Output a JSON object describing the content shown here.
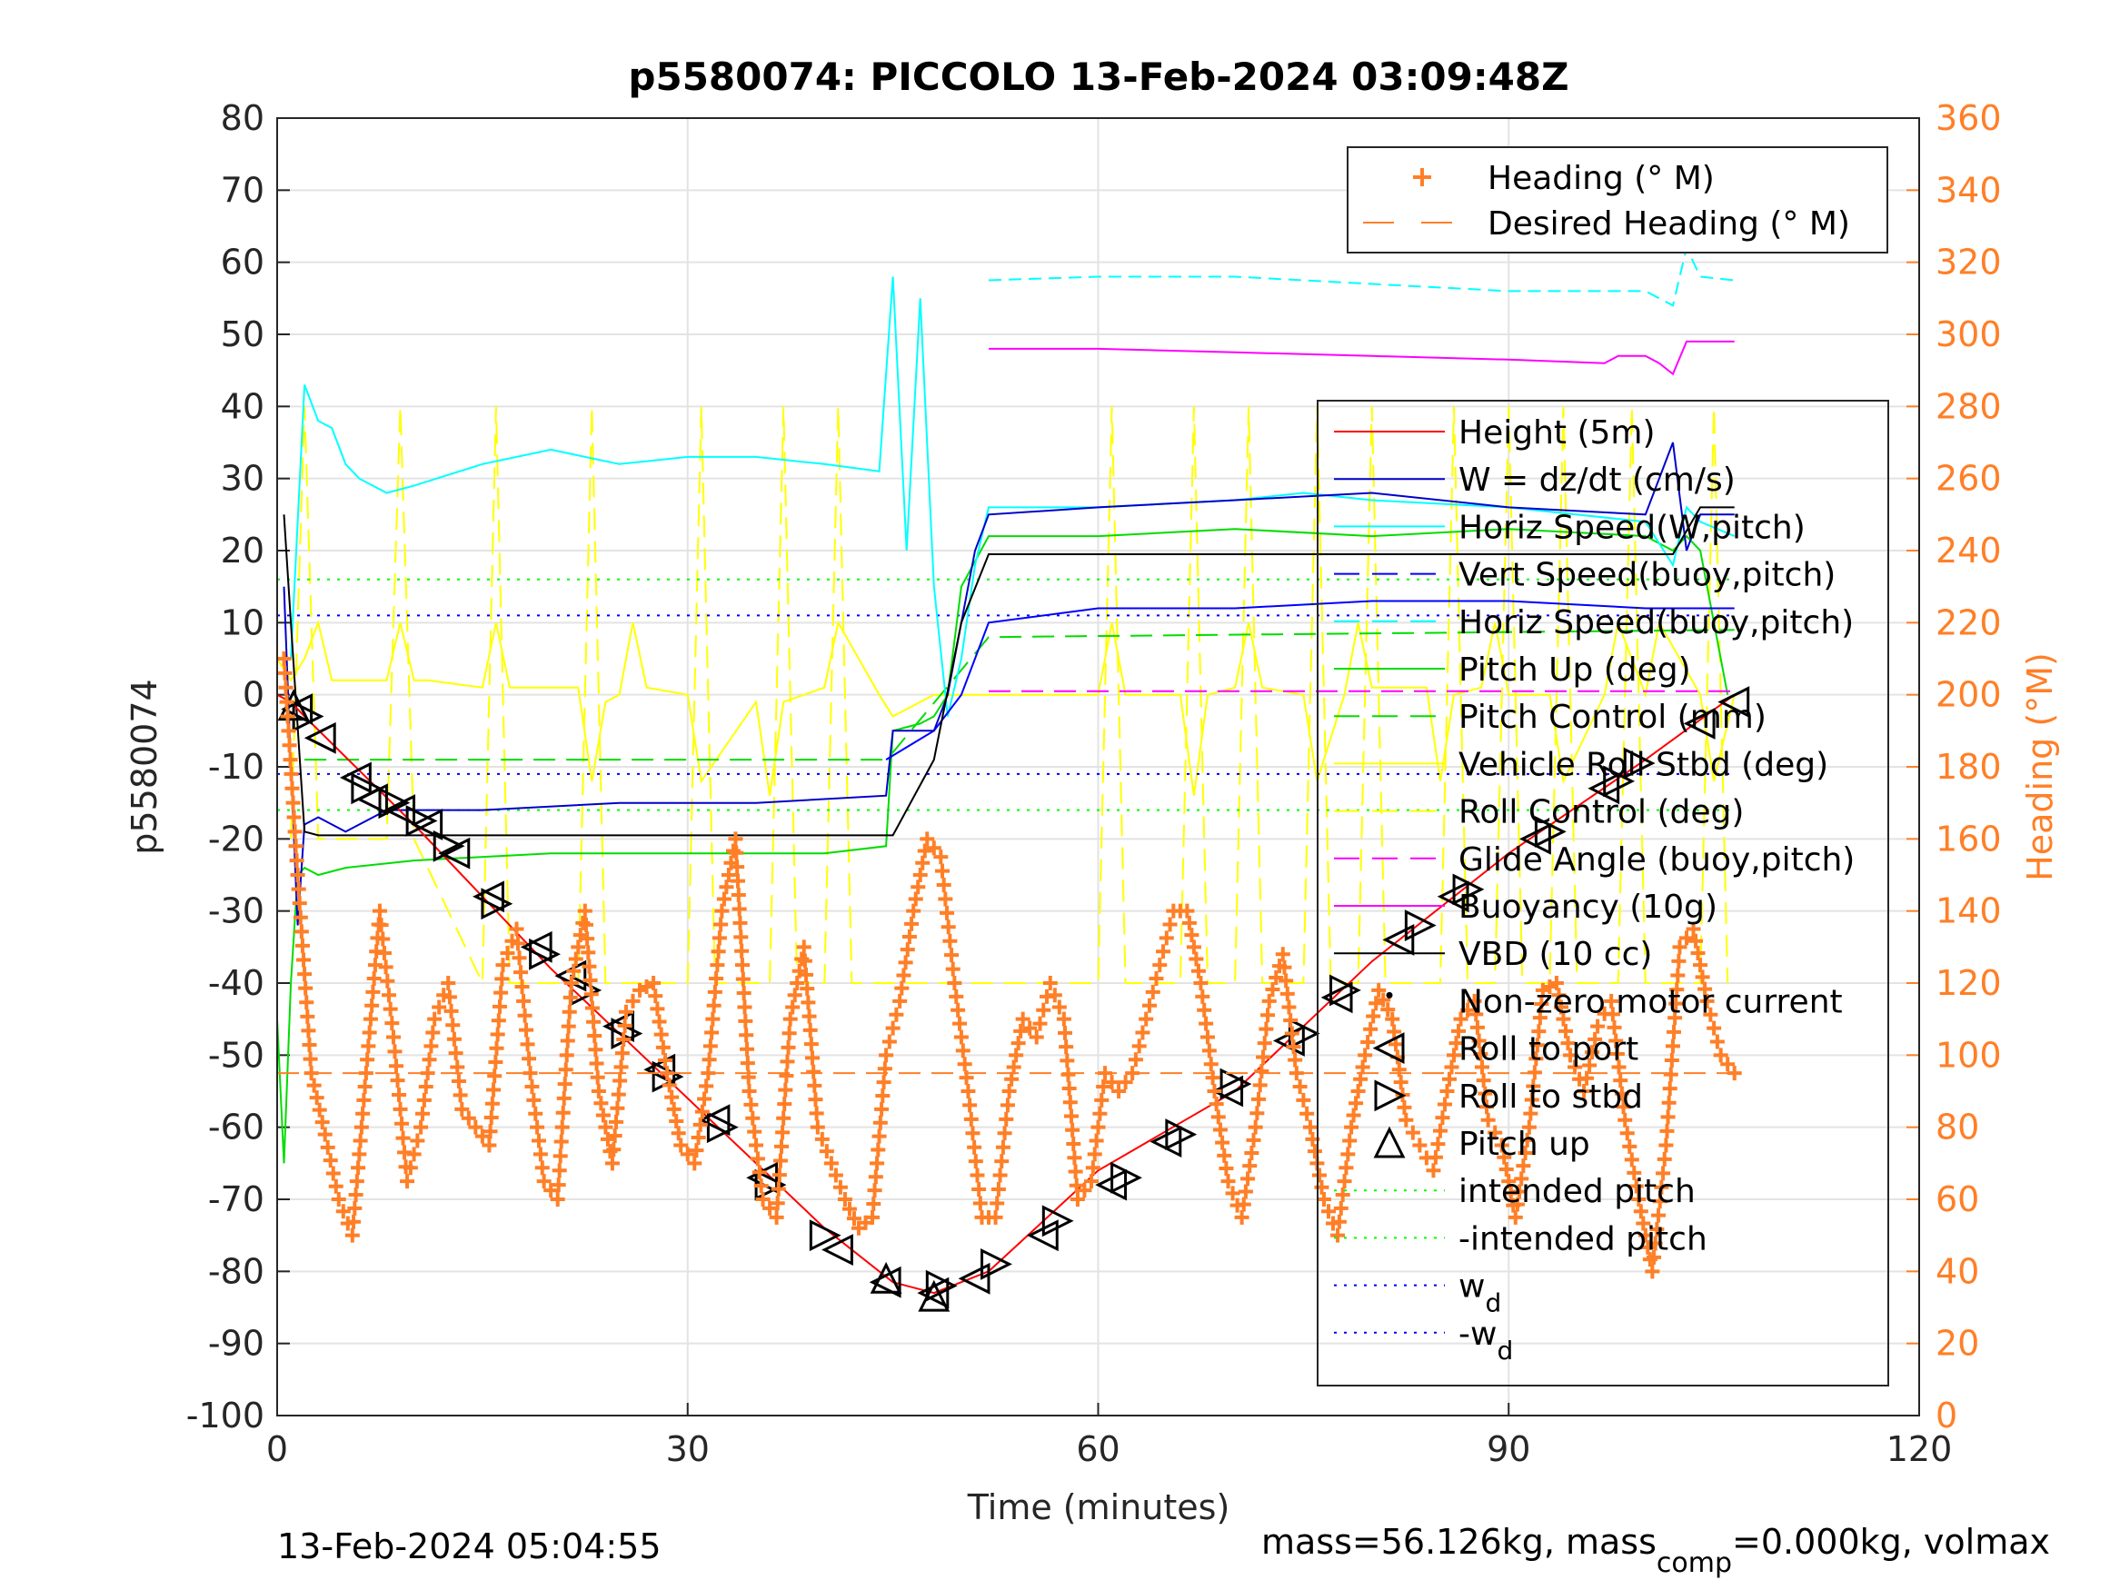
{
  "chart_data": {
    "type": "line",
    "title": "p5580074: PICCOLO 13-Feb-2024 03:09:48Z",
    "xlabel": "Time (minutes)",
    "ylabel": "p5580074",
    "ylabel_right": "Heading (°M)",
    "xlim": [
      0,
      120
    ],
    "ylim": [
      -100,
      80
    ],
    "ylim_right": [
      0,
      360
    ],
    "xticks": [
      "0",
      "30",
      "60",
      "90",
      "120"
    ],
    "yticks": [
      "80",
      "70",
      "60",
      "50",
      "40",
      "30",
      "20",
      "10",
      "0",
      "-10",
      "-20",
      "-30",
      "-40",
      "-50",
      "-60",
      "-70",
      "-80",
      "-90",
      "-100"
    ],
    "yticks_right": [
      "360",
      "340",
      "320",
      "300",
      "280",
      "260",
      "240",
      "220",
      "200",
      "180",
      "160",
      "140",
      "120",
      "100",
      "80",
      "60",
      "40",
      "20",
      "0"
    ],
    "grid": true,
    "colors": {
      "height": "#ff0000",
      "w": "#0000cc",
      "horiz_w": "#00ffff",
      "vert_buoy": "#0000ff",
      "horiz_buoy": "#00ffff",
      "pitch_up": "#00dd00",
      "pitch_control": "#00dd00",
      "roll": "#ffff00",
      "roll_control": "#ffff00",
      "glide": "#ff00ff",
      "buoyancy": "#ff00ff",
      "vbd": "#000000",
      "heading": "#ff7f27",
      "right_axis": "#ff7f27"
    },
    "legend_right_axis": {
      "placement": "top-right",
      "entries": [
        "Heading (° M)",
        "Desired Heading (° M)"
      ]
    },
    "legend_main": {
      "placement": "right",
      "entries": [
        "Height (5m)",
        "W = dz/dt (cm/s)",
        "Horiz Speed(W,pitch)",
        "Vert Speed(buoy,pitch)",
        "Horiz Speed(buoy,pitch)",
        "Pitch Up (deg)",
        "Pitch Control (mm)",
        "Vehicle Roll Stbd (deg)",
        "Roll Control (deg)",
        "Glide Angle (buoy,pitch)",
        "Buoyancy (10g)",
        "VBD (10 cc)",
        "Non-zero motor current",
        "Roll to port",
        "Roll to stbd",
        "Pitch up",
        "intended pitch",
        "-intended pitch",
        "w",
        "-w"
      ],
      "subscript": "d"
    },
    "series": [
      {
        "name": "Height (5m)",
        "x": [
          0,
          1,
          2,
          10,
          20,
          30,
          40,
          45,
          48,
          52,
          60,
          70,
          80,
          90,
          100,
          106.5
        ],
        "y": [
          0,
          -1,
          -3,
          -18,
          -38,
          -56,
          -74,
          -81.5,
          -83,
          -80,
          -66,
          -55,
          -37,
          -22,
          -9,
          0
        ]
      },
      {
        "name": "W = dz/dt (cm/s)",
        "x": [
          0.5,
          1,
          1.5,
          2,
          3,
          5,
          8,
          15,
          25,
          35,
          44.5,
          45,
          46,
          47,
          48,
          49,
          50,
          51,
          52,
          60,
          70,
          80,
          90,
          100,
          102,
          103,
          104,
          106.5
        ],
        "y": [
          15,
          -10,
          -32,
          -18,
          -17,
          -19,
          -16,
          -16,
          -15,
          -15,
          -14,
          -5,
          -5,
          -5,
          -5,
          0,
          10,
          20,
          25,
          26,
          27,
          28,
          26,
          25,
          35,
          20,
          25,
          25
        ]
      },
      {
        "name": "Horiz Speed(W,pitch)",
        "x": [
          1,
          2,
          3,
          4,
          5,
          6,
          8,
          10,
          15,
          20,
          25,
          30,
          35,
          40,
          44,
          45,
          46,
          47,
          48,
          49,
          50,
          51,
          52,
          60,
          70,
          75,
          80,
          90,
          100,
          102,
          103,
          104,
          106.5
        ],
        "y": [
          5,
          43,
          38,
          37,
          32,
          30,
          28,
          29,
          32,
          34,
          32,
          33,
          33,
          32,
          31,
          58,
          20,
          55,
          15,
          -3,
          5,
          18,
          26,
          26,
          27,
          28,
          27,
          26,
          24,
          18,
          26,
          24,
          22
        ]
      },
      {
        "name": "Horiz Speed(buoy,pitch)",
        "x": [
          52,
          60,
          70,
          80,
          90,
          100,
          102,
          103,
          104,
          106.5
        ],
        "y": [
          57.5,
          58,
          58,
          57,
          56,
          56,
          54,
          62,
          58,
          57.5
        ]
      },
      {
        "name": "Vert Speed(buoy,pitch)",
        "x": [
          44.5,
          48,
          50,
          52,
          60,
          70,
          80,
          90,
          100,
          106.5
        ],
        "y": [
          -9,
          -5,
          0,
          10,
          12,
          12,
          13,
          13,
          12,
          12
        ]
      },
      {
        "name": "Pitch Up (deg)",
        "x": [
          0,
          0.5,
          1,
          1.5,
          2,
          3,
          5,
          10,
          20,
          30,
          40,
          44.5,
          45,
          47,
          48,
          49,
          50,
          52,
          60,
          70,
          80,
          90,
          100,
          102,
          103,
          104,
          106
        ],
        "y": [
          -45,
          -65,
          -40,
          -25,
          -24,
          -25,
          -24,
          -23,
          -22,
          -22,
          -22,
          -21,
          -5,
          -4,
          -3,
          0,
          15,
          22,
          22,
          23,
          22,
          23,
          22,
          20,
          22,
          20,
          0
        ]
      },
      {
        "name": "Pitch Control (mm)",
        "x": [
          2,
          44.5,
          45,
          52,
          106.5
        ],
        "y": [
          -9,
          -9,
          -8,
          8,
          9
        ]
      },
      {
        "name": "Vehicle Roll Stbd (deg)",
        "x": [
          0,
          1,
          2,
          3,
          4,
          8,
          9,
          10,
          11,
          15,
          16,
          17,
          18,
          22,
          23,
          24,
          25,
          26,
          27,
          30,
          31,
          35,
          36,
          37,
          40,
          41,
          44,
          45,
          48,
          52,
          60,
          61,
          62,
          66,
          67,
          68,
          70,
          71,
          72,
          75,
          76,
          78,
          79,
          80,
          84,
          85,
          86,
          88,
          89,
          90,
          93,
          94,
          97,
          98,
          100,
          101,
          104,
          105,
          106.5
        ],
        "y": [
          5,
          2,
          5,
          10,
          2,
          2,
          10,
          2,
          2,
          1,
          10,
          1,
          1,
          1,
          -12,
          -1,
          0,
          10,
          1,
          0,
          -12,
          -1,
          -14,
          -1,
          1,
          10,
          0,
          -3,
          0,
          0,
          0,
          10,
          0,
          0,
          -14,
          0,
          1,
          10,
          1,
          0,
          -12,
          0,
          10,
          1,
          1,
          -12,
          0,
          1,
          10,
          0,
          0,
          -12,
          0,
          10,
          0,
          10,
          0,
          -12,
          0
        ]
      },
      {
        "name": "Roll Control (deg)",
        "x": [
          1,
          2,
          3,
          8,
          9,
          10,
          15,
          16,
          17,
          22,
          23,
          24,
          30,
          31,
          32,
          36,
          37,
          38,
          40,
          41,
          42,
          60,
          61,
          62,
          66,
          67,
          68,
          70,
          71,
          72,
          75,
          76,
          77,
          79,
          80,
          81,
          85,
          86,
          87,
          89,
          90,
          91,
          93,
          94,
          95,
          98,
          99,
          100,
          104,
          105,
          106
        ],
        "y": [
          -20,
          40,
          -20,
          -20,
          40,
          -20,
          -40,
          40,
          -40,
          -40,
          40,
          -40,
          -40,
          40,
          -40,
          -40,
          40,
          -40,
          -40,
          40,
          -40,
          -40,
          40,
          -40,
          -40,
          40,
          -40,
          -40,
          40,
          -40,
          -40,
          40,
          -40,
          -40,
          40,
          -40,
          -40,
          40,
          -40,
          -40,
          40,
          -40,
          -40,
          40,
          -40,
          -40,
          40,
          -40,
          -40,
          40,
          -40
        ]
      },
      {
        "name": "Glide Angle (buoy,pitch)",
        "x": [
          52,
          106.5
        ],
        "y": [
          0.5,
          0.5
        ]
      },
      {
        "name": "Buoyancy (10g)",
        "x": [
          52,
          60,
          70,
          80,
          90,
          97,
          98,
          100,
          101,
          102,
          103,
          104,
          106.5
        ],
        "y": [
          48,
          48,
          47.5,
          47,
          46.5,
          46,
          47,
          47,
          46,
          44.5,
          49,
          49,
          49
        ]
      },
      {
        "name": "VBD (10 cc)",
        "x": [
          0.5,
          1,
          2,
          3,
          44.5,
          45,
          48,
          50,
          52,
          60,
          70,
          80,
          90,
          100,
          102,
          104,
          106.5
        ],
        "y": [
          25,
          10,
          -19,
          -19.5,
          -19.5,
          -19.5,
          -9,
          10,
          19.5,
          19.5,
          19.5,
          19.5,
          19.5,
          19.5,
          19.5,
          26,
          26
        ]
      },
      {
        "name": "intended pitch",
        "x": [
          0,
          106.5
        ],
        "y": [
          16,
          16
        ]
      },
      {
        "name": "-intended pitch",
        "x": [
          0,
          106.5
        ],
        "y": [
          -16,
          -16
        ]
      },
      {
        "name": "w",
        "x": [
          0,
          106.5
        ],
        "y": [
          11,
          11
        ]
      },
      {
        "name": "-w",
        "x": [
          0,
          106.5
        ],
        "y": [
          -11,
          -11
        ]
      }
    ],
    "heading": {
      "name": "Heading (° M)",
      "axis": "right",
      "x": [
        0.5,
        1.5,
        2.5,
        3.5,
        4.5,
        5.5,
        6.5,
        7.5,
        8.5,
        9.5,
        10.5,
        11.5,
        12.5,
        13.5,
        14.5,
        15.5,
        16.5,
        17.5,
        18.5,
        19.5,
        20.5,
        21.5,
        22.5,
        23.5,
        24.5,
        25.5,
        26.5,
        27.5,
        28.5,
        29.5,
        30.5,
        31.5,
        32.5,
        33.5,
        34.5,
        35.5,
        36.5,
        37.5,
        38.5,
        39.5,
        40.5,
        41.5,
        42.5,
        43.5,
        44.5,
        45.5,
        46.5,
        47.5,
        48.5,
        49.5,
        50.5,
        51.5,
        52.5,
        53.5,
        54.5,
        55.5,
        56.5,
        57.5,
        58.5,
        59.5,
        60.5,
        61.5,
        62.5,
        63.5,
        64.5,
        65.5,
        66.5,
        67.5,
        68.5,
        69.5,
        70.5,
        71.5,
        72.5,
        73.5,
        74.5,
        75.5,
        76.5,
        77.5,
        78.5,
        79.5,
        80.5,
        81.5,
        82.5,
        83.5,
        84.5,
        85.5,
        86.5,
        87.5,
        88.5,
        89.5,
        90.5,
        91.5,
        92.5,
        93.5,
        94.5,
        95.5,
        96.5,
        97.5,
        98.5,
        99.5,
        100.5,
        101.5,
        102.5,
        103.5,
        104.5,
        105.5,
        106.5
      ],
      "y": [
        210,
        150,
        95,
        78,
        60,
        50,
        95,
        140,
        105,
        65,
        80,
        110,
        120,
        85,
        80,
        75,
        125,
        135,
        95,
        65,
        60,
        120,
        140,
        90,
        70,
        112,
        118,
        120,
        95,
        75,
        70,
        95,
        140,
        160,
        90,
        60,
        55,
        110,
        130,
        80,
        70,
        60,
        52,
        55,
        100,
        115,
        140,
        160,
        155,
        120,
        90,
        55,
        55,
        90,
        110,
        105,
        120,
        110,
        60,
        65,
        95,
        90,
        95,
        110,
        125,
        140,
        140,
        120,
        90,
        65,
        55,
        80,
        115,
        128,
        95,
        80,
        60,
        50,
        80,
        100,
        118,
        110,
        82,
        75,
        68,
        90,
        110,
        115,
        82,
        75,
        55,
        80,
        118,
        120,
        100,
        90,
        108,
        115,
        82,
        60,
        40,
        75,
        130,
        135,
        115,
        100,
        95
      ]
    },
    "desired_heading": {
      "name": "Desired Heading (° M)",
      "axis": "right",
      "x": [
        0,
        106.5
      ],
      "y": [
        95,
        95
      ]
    },
    "markers": {
      "roll_to_port": [
        [
          1.5,
          -2
        ],
        [
          3.2,
          -6
        ],
        [
          5.8,
          -11.5
        ],
        [
          7,
          -14.5
        ],
        [
          9,
          -16
        ],
        [
          11,
          -18
        ],
        [
          13,
          -22
        ],
        [
          15.5,
          -28
        ],
        [
          19,
          -35
        ],
        [
          21.5,
          -39
        ],
        [
          25,
          -46
        ],
        [
          28,
          -52
        ],
        [
          32,
          -59
        ],
        [
          35.5,
          -67
        ],
        [
          41,
          -77
        ],
        [
          44.5,
          -81.5
        ],
        [
          48,
          -83
        ],
        [
          51,
          -81
        ],
        [
          56,
          -75
        ],
        [
          61,
          -68
        ],
        [
          65,
          -62
        ],
        [
          69.5,
          -55
        ],
        [
          74,
          -48
        ],
        [
          77.5,
          -42
        ],
        [
          82,
          -34
        ],
        [
          86,
          -28
        ],
        [
          92,
          -20
        ],
        [
          97,
          -13
        ],
        [
          104,
          -4
        ],
        [
          106.5,
          -1
        ]
      ],
      "roll_to_stbd": [
        [
          2.2,
          -3
        ],
        [
          6.5,
          -13
        ],
        [
          8.5,
          -15
        ],
        [
          10.5,
          -17.5
        ],
        [
          12.5,
          -21
        ],
        [
          16,
          -29
        ],
        [
          19.5,
          -36
        ],
        [
          22.5,
          -41
        ],
        [
          25.5,
          -47
        ],
        [
          28.5,
          -53
        ],
        [
          32.5,
          -60
        ],
        [
          36,
          -68
        ],
        [
          40,
          -75
        ],
        [
          48.5,
          -82
        ],
        [
          52.5,
          -79
        ],
        [
          57,
          -73
        ],
        [
          62,
          -67
        ],
        [
          66,
          -61
        ],
        [
          70,
          -54
        ],
        [
          75,
          -47
        ],
        [
          78,
          -41
        ],
        [
          83.5,
          -32
        ],
        [
          87,
          -27
        ],
        [
          93,
          -19
        ],
        [
          98,
          -12
        ],
        [
          99.5,
          -9.5
        ]
      ],
      "pitch_up": [
        [
          1.2,
          -1.5
        ],
        [
          44.5,
          -81
        ],
        [
          48,
          -83.5
        ]
      ]
    },
    "footer_left": "13-Feb-2024 05:04:55",
    "footer_right_prefix": "mass=56.126kg, mass",
    "footer_right_sub": "comp",
    "footer_right_suffix": "=0.000kg, volmax"
  }
}
